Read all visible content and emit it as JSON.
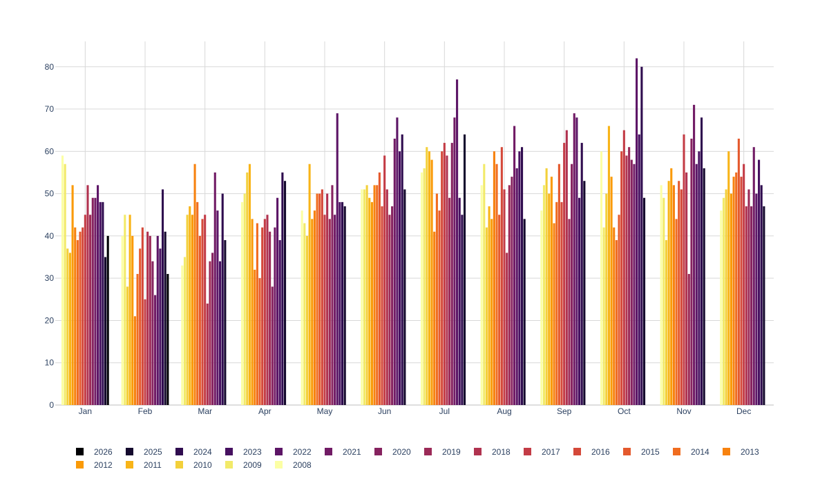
{
  "chart_data": {
    "type": "bar",
    "title": "",
    "xlabel": "",
    "ylabel": "",
    "ylim": [
      0,
      86
    ],
    "yticks": [
      0,
      10,
      20,
      30,
      40,
      50,
      60,
      70,
      80
    ],
    "categories": [
      "Jan",
      "Feb",
      "Mar",
      "Apr",
      "May",
      "Jun",
      "Jul",
      "Aug",
      "Sep",
      "Oct",
      "Nov",
      "Dec"
    ],
    "grid": true,
    "legend_position": "bottom",
    "series": [
      {
        "name": "2008",
        "color": "#fcffa4",
        "values": [
          59,
          40,
          33,
          48,
          46,
          51,
          55,
          52,
          46,
          60,
          52,
          46
        ]
      },
      {
        "name": "2009",
        "color": "#f2ea69",
        "values": [
          57,
          45,
          35,
          50,
          43,
          51,
          56,
          57,
          52,
          42,
          49,
          49
        ]
      },
      {
        "name": "2010",
        "color": "#f3d03a",
        "values": [
          37,
          28,
          45,
          55,
          40,
          52,
          61,
          42,
          56,
          50,
          39,
          51
        ]
      },
      {
        "name": "2011",
        "color": "#f8b418",
        "values": [
          36,
          45,
          47,
          57,
          57,
          49,
          60,
          47,
          50,
          66,
          53,
          60
        ]
      },
      {
        "name": "2012",
        "color": "#fa9a07",
        "values": [
          52,
          40,
          45,
          44,
          44,
          48,
          58,
          44,
          54,
          54,
          56,
          50
        ]
      },
      {
        "name": "2013",
        "color": "#f7820f",
        "values": [
          42,
          21,
          57,
          32,
          46,
          52,
          41,
          60,
          43,
          42,
          52,
          54
        ]
      },
      {
        "name": "2014",
        "color": "#f06c1f",
        "values": [
          39,
          31,
          48,
          43,
          50,
          52,
          50,
          57,
          48,
          39,
          44,
          55
        ]
      },
      {
        "name": "2015",
        "color": "#e4592d",
        "values": [
          41,
          37,
          40,
          30,
          50,
          55,
          46,
          45,
          57,
          45,
          53,
          63
        ]
      },
      {
        "name": "2016",
        "color": "#d44839",
        "values": [
          42,
          42,
          44,
          42,
          51,
          47,
          60,
          61,
          48,
          60,
          51,
          54
        ]
      },
      {
        "name": "2017",
        "color": "#c33c46",
        "values": [
          45,
          25,
          45,
          44,
          45,
          59,
          62,
          51,
          62,
          65,
          64,
          57
        ]
      },
      {
        "name": "2018",
        "color": "#b0324f",
        "values": [
          52,
          41,
          24,
          45,
          50,
          51,
          59,
          36,
          65,
          59,
          55,
          47
        ]
      },
      {
        "name": "2019",
        "color": "#9b2a57",
        "values": [
          45,
          40,
          34,
          41,
          44,
          45,
          49,
          52,
          44,
          61,
          31,
          51
        ]
      },
      {
        "name": "2020",
        "color": "#86225f",
        "values": [
          49,
          34,
          36,
          28,
          52,
          47,
          62,
          54,
          57,
          58,
          63,
          47
        ]
      },
      {
        "name": "2021",
        "color": "#711b65",
        "values": [
          49,
          26,
          55,
          42,
          45,
          63,
          68,
          66,
          69,
          57,
          71,
          61
        ]
      },
      {
        "name": "2022",
        "color": "#5c1566",
        "values": [
          52,
          40,
          46,
          49,
          69,
          68,
          77,
          56,
          68,
          82,
          57,
          50
        ]
      },
      {
        "name": "2023",
        "color": "#461060",
        "values": [
          48,
          37,
          34,
          39,
          48,
          60,
          49,
          60,
          49,
          64,
          60,
          58
        ]
      },
      {
        "name": "2024",
        "color": "#2f0c4f",
        "values": [
          48,
          51,
          50,
          55,
          48,
          64,
          45,
          61,
          62,
          80,
          68,
          52
        ]
      },
      {
        "name": "2025",
        "color": "#150a2e",
        "values": [
          35,
          41,
          39,
          53,
          47,
          51,
          64,
          44,
          53,
          49,
          56,
          47
        ]
      },
      {
        "name": "2026",
        "color": "#000004",
        "values": [
          40,
          31,
          null,
          null,
          null,
          null,
          null,
          null,
          null,
          null,
          null,
          null
        ]
      }
    ]
  }
}
